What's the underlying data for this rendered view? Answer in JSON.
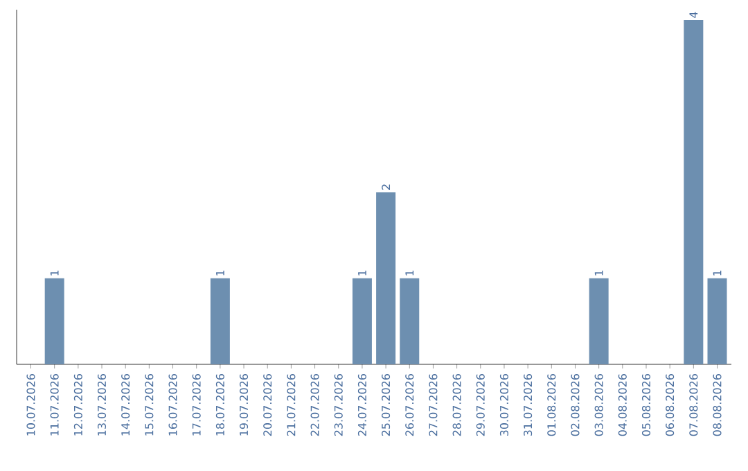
{
  "chart_data": {
    "type": "bar",
    "categories": [
      "10.07.2026",
      "11.07.2026",
      "12.07.2026",
      "13.07.2026",
      "14.07.2026",
      "15.07.2026",
      "16.07.2026",
      "17.07.2026",
      "18.07.2026",
      "19.07.2026",
      "20.07.2026",
      "21.07.2026",
      "22.07.2026",
      "23.07.2026",
      "24.07.2026",
      "25.07.2026",
      "26.07.2026",
      "27.07.2026",
      "28.07.2026",
      "29.07.2026",
      "30.07.2026",
      "31.07.2026",
      "01.08.2026",
      "02.08.2026",
      "03.08.2026",
      "04.08.2026",
      "05.08.2026",
      "06.08.2026",
      "07.08.2026",
      "08.08.2026"
    ],
    "values": [
      0,
      1,
      0,
      0,
      0,
      0,
      0,
      0,
      1,
      0,
      0,
      0,
      0,
      0,
      1,
      2,
      1,
      0,
      0,
      0,
      0,
      0,
      0,
      0,
      1,
      0,
      0,
      0,
      4,
      1
    ],
    "value_labels": [
      null,
      "1",
      null,
      null,
      null,
      null,
      null,
      null,
      "1",
      null,
      null,
      null,
      null,
      null,
      "1",
      "2",
      "1",
      null,
      null,
      null,
      null,
      null,
      null,
      null,
      "1",
      null,
      null,
      null,
      "4",
      "1"
    ],
    "color": "#6d8fb0",
    "tick_labels": "x"
  }
}
